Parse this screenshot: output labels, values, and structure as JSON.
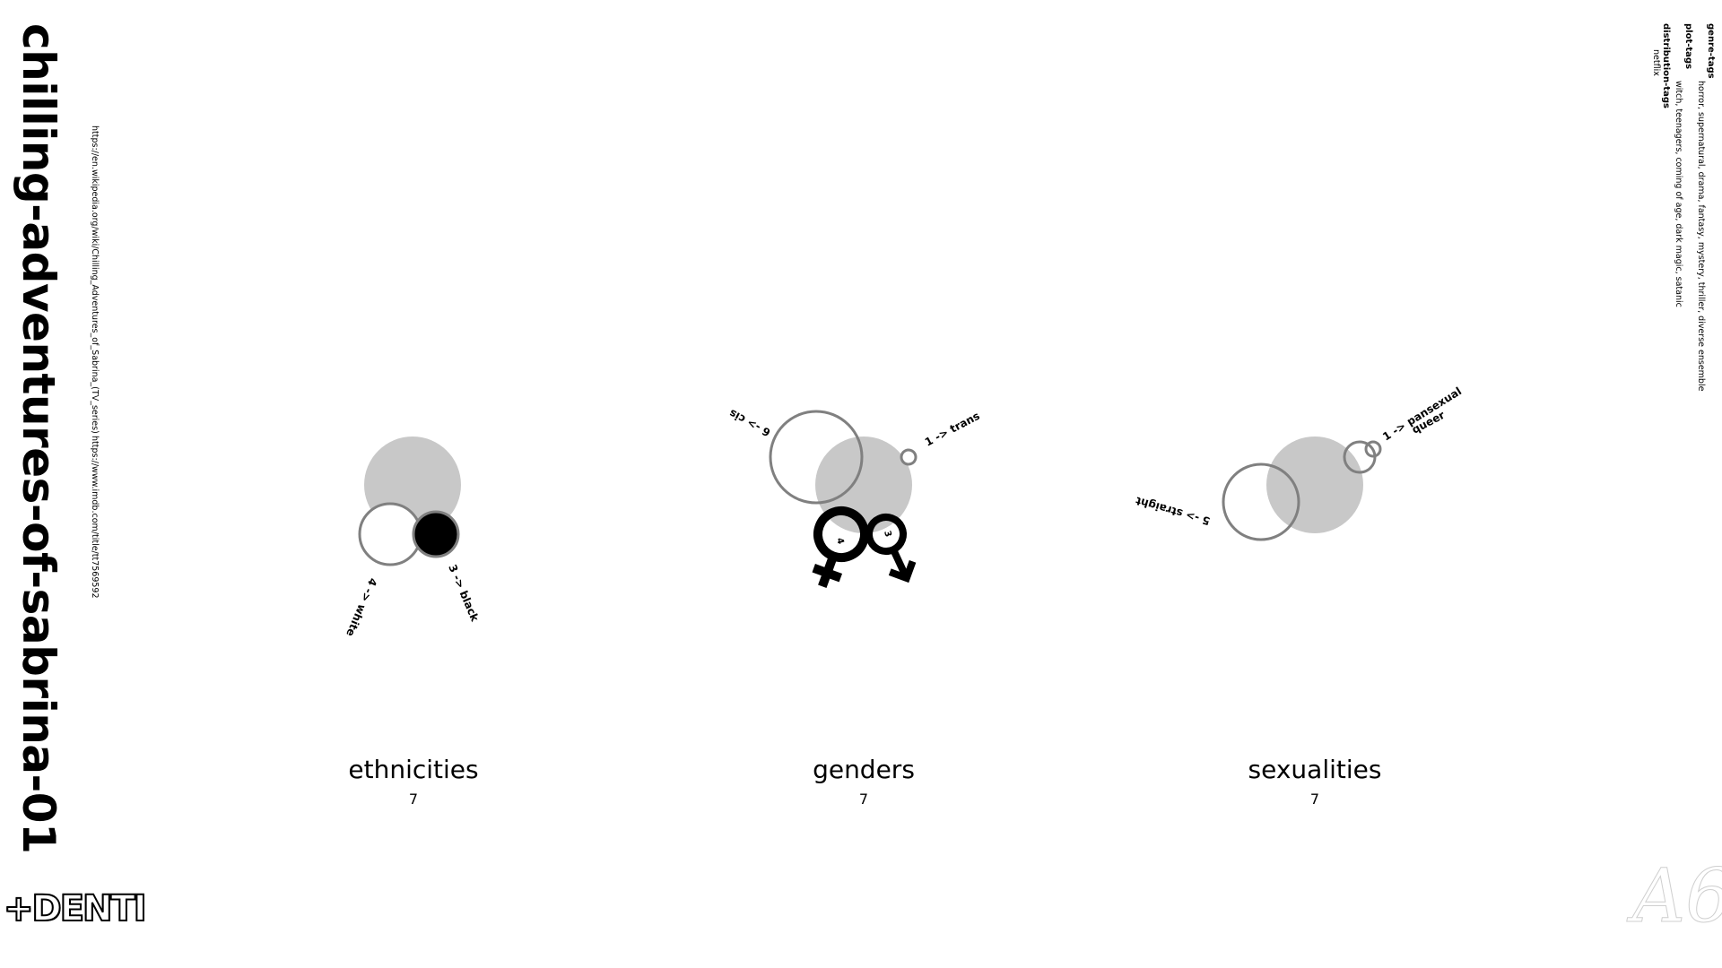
{
  "title": "chilling-adventures-of-sabrina-01",
  "links": [
    "https://en.wikipedia.org/wiki/Chilling_Adventures_of_Sabrina_(TV_series)",
    "https://www.imdb.com/title/tt7569592"
  ],
  "tags": [
    {
      "name": "genre-tags",
      "values": "horror, supernatural, drama, fantasy, mystery, thriller, diverse ensemble"
    },
    {
      "name": "plot-tags",
      "values": "witch, teenagers, coming of age, dark magic, satanic"
    },
    {
      "name": "distribution-tags",
      "values": "netflix"
    }
  ],
  "panels": [
    {
      "label": "ethnicities",
      "count": "7"
    },
    {
      "label": "genders",
      "count": "7"
    },
    {
      "label": "sexualities",
      "count": "7"
    }
  ],
  "chart_data": [
    {
      "type": "diagram",
      "title": "ethnicities",
      "total": 7,
      "categories": [
        "white",
        "black"
      ],
      "values": [
        4,
        3
      ],
      "labels": [
        "4 -> white",
        "3 -> black"
      ]
    },
    {
      "type": "diagram",
      "title": "genders",
      "total": 7,
      "categories": [
        "cis",
        "trans",
        "female",
        "male"
      ],
      "values": [
        6,
        1,
        4,
        3
      ],
      "labels": [
        "6 -> cis",
        "1 -> trans",
        "4",
        "3"
      ]
    },
    {
      "type": "diagram",
      "title": "sexualities",
      "total": 7,
      "categories": [
        "straight",
        "pansexual",
        "queer"
      ],
      "values": [
        5,
        1,
        1
      ],
      "labels": [
        "5 -> straight",
        "1 -> pansexual",
        "queer"
      ]
    }
  ],
  "logos": {
    "left": "+DENTI",
    "right": "A6"
  },
  "colors": {
    "total_fill": "#c8c8c8",
    "ring": "#808080",
    "black_fill": "#000000"
  }
}
